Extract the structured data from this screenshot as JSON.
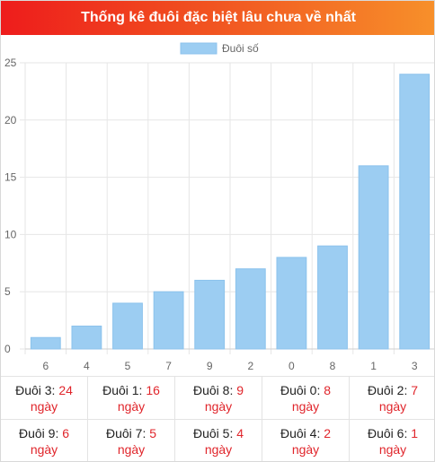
{
  "header": {
    "title": "Thống kê đuôi đặc biệt lâu chưa về nhất"
  },
  "colors": {
    "bar": "#9ccdf2",
    "bar_border": "#8cc2ec",
    "header_start": "#ee1c1c",
    "header_end": "#f7902a",
    "value": "#e0252b"
  },
  "chart_data": {
    "type": "bar",
    "categories": [
      "6",
      "4",
      "5",
      "7",
      "9",
      "2",
      "0",
      "8",
      "1",
      "3"
    ],
    "series": [
      {
        "name": "Đuôi số",
        "values": [
          1,
          2,
          4,
          5,
          6,
          7,
          8,
          9,
          16,
          24
        ]
      }
    ],
    "ylim": [
      0,
      25
    ],
    "yticks": [
      "0",
      "5",
      "10",
      "15",
      "20",
      "25"
    ],
    "grid": true,
    "legend_position": "top-center"
  },
  "table": {
    "day_unit": "ngày",
    "rows": [
      [
        {
          "label": "Đuôi 3:",
          "value": "24"
        },
        {
          "label": "Đuôi 1:",
          "value": "16"
        },
        {
          "label": "Đuôi 8:",
          "value": "9"
        },
        {
          "label": "Đuôi 0:",
          "value": "8"
        },
        {
          "label": "Đuôi 2:",
          "value": "7"
        }
      ],
      [
        {
          "label": "Đuôi 9:",
          "value": "6"
        },
        {
          "label": "Đuôi 7:",
          "value": "5"
        },
        {
          "label": "Đuôi 5:",
          "value": "4"
        },
        {
          "label": "Đuôi 4:",
          "value": "2"
        },
        {
          "label": "Đuôi 6:",
          "value": "1"
        }
      ]
    ]
  }
}
